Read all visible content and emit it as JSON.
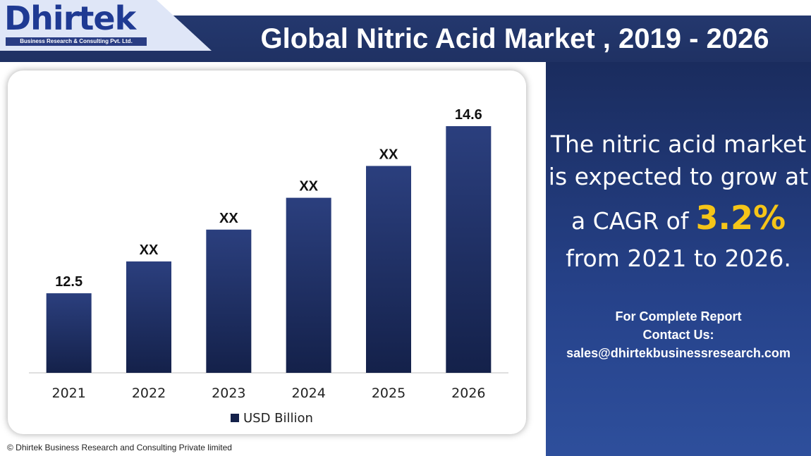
{
  "logo": {
    "name": "Dhirtek",
    "tagline": "Business Research & Consulting Pvt. Ltd."
  },
  "header": {
    "title": "Global Nitric Acid Market , 2019 - 2026"
  },
  "panel": {
    "line1": "The nitric acid market",
    "line2": "is expected to grow at",
    "line3_prefix": "a CAGR of",
    "cagr": "3.2%",
    "line4": "from 2021 to 2026.",
    "contact_line1": "For Complete Report",
    "contact_line2": "Contact Us:",
    "contact_email": "sales@dhirtekbusinessresearch.com"
  },
  "footer": {
    "copyright": "© Dhirtek Business Research and Consulting Private limited"
  },
  "colors": {
    "header_bg": "#24386e",
    "bar_top": "#2b3f7e",
    "bar_bottom": "#14214a",
    "cagr_accent": "#f5c518"
  },
  "chart_data": {
    "type": "bar",
    "categories": [
      "2021",
      "2022",
      "2023",
      "2024",
      "2025",
      "2026"
    ],
    "series": [
      {
        "name": "USD Billion",
        "values": [
          12.5,
          12.9,
          13.3,
          13.7,
          14.1,
          14.6
        ],
        "labels": [
          "12.5",
          "XX",
          "XX",
          "XX",
          "XX",
          "14.6"
        ]
      }
    ],
    "ylim": [
      11.5,
      14.6
    ],
    "grid": false,
    "legend": "bottom-center"
  }
}
